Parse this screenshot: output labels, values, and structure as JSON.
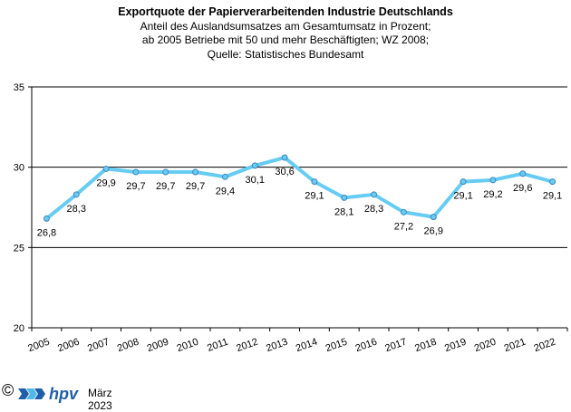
{
  "chart_data": {
    "type": "line",
    "title": "Exportquote der Papierverarbeitenden Industrie Deutschlands",
    "subtitle_lines": [
      "Anteil des Auslandsumsatzes am Gesamtumsatz in Prozent;",
      "ab 2005 Betriebe mit 50 und mehr Beschäftigten; WZ 2008;",
      "Quelle: Statistisches Bundesamt"
    ],
    "x": [
      "2005",
      "2006",
      "2007",
      "2008",
      "2009",
      "2010",
      "2011",
      "2012",
      "2013",
      "2014",
      "2015",
      "2016",
      "2017",
      "2018",
      "2019",
      "2020",
      "2021",
      "2022"
    ],
    "values": [
      26.8,
      28.3,
      29.9,
      29.7,
      29.7,
      29.7,
      29.4,
      30.1,
      30.6,
      29.1,
      28.1,
      28.3,
      27.2,
      26.9,
      29.1,
      29.2,
      29.6,
      29.1
    ],
    "value_labels": [
      "26,8",
      "28,3",
      "29,9",
      "29,7",
      "29,7",
      "29,7",
      "29,4",
      "30,1",
      "30,6",
      "29,1",
      "28,1",
      "28,3",
      "27,2",
      "26,9",
      "29,1",
      "29,2",
      "29,6",
      "29,1"
    ],
    "label_position": [
      "below",
      "below",
      "below",
      "below",
      "below",
      "below",
      "below",
      "below",
      "below",
      "below",
      "below",
      "below",
      "below",
      "below",
      "below",
      "below",
      "below",
      "below"
    ],
    "yticks": [
      "20",
      "25",
      "30",
      "35"
    ],
    "ylim": [
      20,
      35
    ],
    "grid": "horizontal",
    "line_color": "#66ccf2",
    "marker_color": "#66ccf2",
    "marker_edge": "#3f86c0"
  },
  "footer": {
    "copyright": "©",
    "logo_text": "hpv",
    "date": "März 2023",
    "logo_color": "#1f5ea8",
    "logo_accent": "#52b8e8"
  }
}
